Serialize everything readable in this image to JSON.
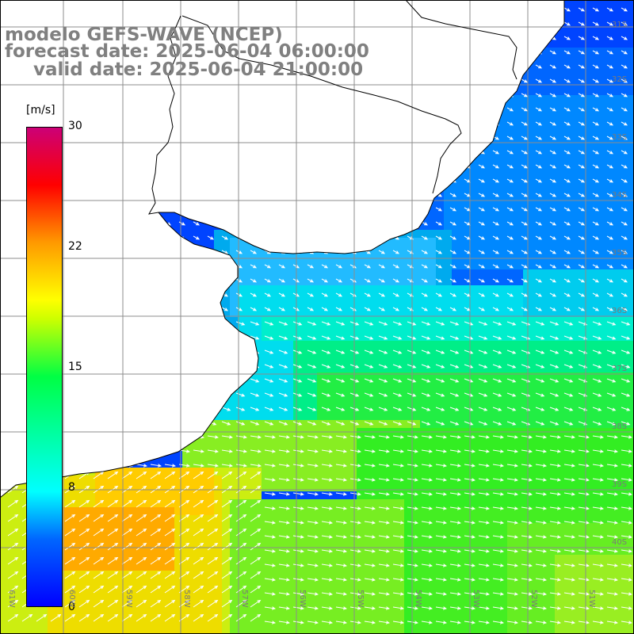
{
  "title": {
    "line1": "modelo GEFS-WAVE (NCEP)",
    "line2": "forecast date: 2025-06-04 06:00:00",
    "line3": "valid date: 2025-06-04 21:00:00"
  },
  "colorbar": {
    "unit": "[m/s]",
    "ticks": [
      "30",
      "22",
      "15",
      "8",
      "0"
    ],
    "min": 0,
    "max": 30
  },
  "axes": {
    "lon_labels": [
      "61W",
      "60W",
      "59W",
      "58W",
      "57W",
      "56W",
      "55W",
      "54W",
      "53W",
      "52W",
      "51W"
    ],
    "lat_labels": [
      "31S",
      "32S",
      "33S",
      "34S",
      "35S",
      "36S",
      "37S",
      "38S",
      "39S",
      "40S"
    ]
  },
  "colors": {
    "land": "#ffffff",
    "coast": "#000000",
    "grid": "#8c8c8c",
    "arrows": "#ffffff",
    "title": "#808080"
  }
}
